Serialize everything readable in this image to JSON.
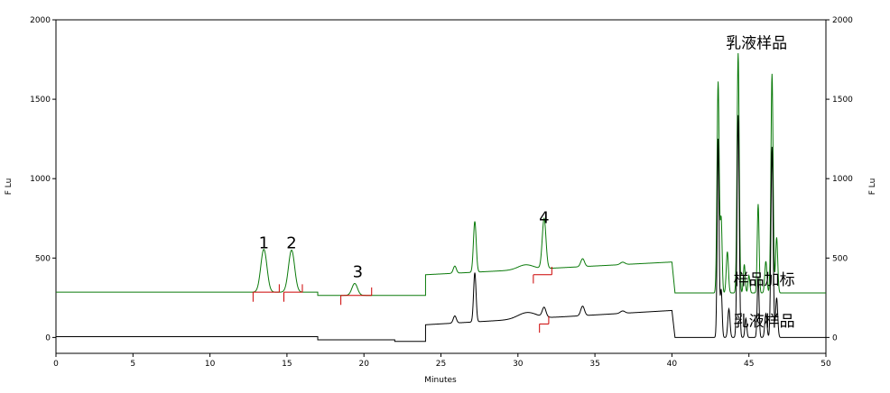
{
  "chart_data": {
    "type": "line",
    "xlabel": "Minutes",
    "ylabel_left": "F Lu",
    "ylabel_right": "F Lu",
    "xlim": [
      0,
      50
    ],
    "ylim": [
      -100,
      2000
    ],
    "x_ticks": [
      0,
      5,
      10,
      15,
      20,
      25,
      30,
      35,
      40,
      45,
      50
    ],
    "y_ticks": [
      0,
      500,
      1000,
      1500,
      2000
    ],
    "grid": false,
    "colors": {
      "spiked": "#0a7a0a",
      "sample": "#000000",
      "marker": "#cc0000"
    },
    "peak_labels": [
      {
        "text": "1",
        "x": 13.5,
        "y": 560
      },
      {
        "text": "2",
        "x": 15.3,
        "y": 560
      },
      {
        "text": "3",
        "x": 19.6,
        "y": 380
      },
      {
        "text": "4",
        "x": 31.7,
        "y": 720
      }
    ],
    "trace_labels": [
      {
        "text": "乳液样品",
        "x": 43.5,
        "y": 1820
      },
      {
        "text": "样品加标",
        "x": 44.0,
        "y": 330
      },
      {
        "text": "乳液样品",
        "x": 44.0,
        "y": 70
      }
    ],
    "series": [
      {
        "key": "spiked",
        "baseline": [
          [
            0,
            285
          ],
          [
            17.0,
            285
          ],
          [
            17.0,
            265
          ],
          [
            24.0,
            265
          ],
          [
            24.0,
            395
          ],
          [
            40.0,
            475
          ],
          [
            40.2,
            280
          ],
          [
            42.7,
            280
          ],
          [
            50,
            280
          ]
        ],
        "peaks": [
          [
            13.5,
            270,
            0.2
          ],
          [
            15.3,
            265,
            0.2
          ],
          [
            19.4,
            75,
            0.18
          ],
          [
            25.9,
            45,
            0.1
          ],
          [
            27.2,
            320,
            0.09
          ],
          [
            30.5,
            30,
            0.5
          ],
          [
            31.7,
            315,
            0.12
          ],
          [
            34.2,
            50,
            0.12
          ],
          [
            36.8,
            15,
            0.15
          ],
          [
            43.0,
            1330,
            0.07
          ],
          [
            43.2,
            460,
            0.06
          ],
          [
            43.6,
            260,
            0.07
          ],
          [
            44.3,
            1510,
            0.07
          ],
          [
            44.7,
            180,
            0.06
          ],
          [
            45.0,
            110,
            0.06
          ],
          [
            45.6,
            560,
            0.06
          ],
          [
            46.1,
            200,
            0.07
          ],
          [
            46.5,
            1380,
            0.07
          ],
          [
            46.8,
            350,
            0.07
          ]
        ]
      },
      {
        "key": "sample",
        "baseline": [
          [
            0,
            5
          ],
          [
            17.0,
            5
          ],
          [
            17.0,
            -15
          ],
          [
            22.0,
            -15
          ],
          [
            22.0,
            -25
          ],
          [
            24.0,
            -25
          ],
          [
            24.0,
            80
          ],
          [
            40.0,
            170
          ],
          [
            40.2,
            0
          ],
          [
            42.7,
            0
          ],
          [
            50,
            0
          ]
        ],
        "peaks": [
          [
            25.9,
            45,
            0.1
          ],
          [
            27.2,
            310,
            0.08
          ],
          [
            30.6,
            40,
            0.6
          ],
          [
            31.7,
            60,
            0.12
          ],
          [
            34.2,
            60,
            0.12
          ],
          [
            36.8,
            15,
            0.15
          ],
          [
            43.0,
            1250,
            0.06
          ],
          [
            43.2,
            300,
            0.06
          ],
          [
            43.7,
            180,
            0.07
          ],
          [
            44.3,
            1400,
            0.07
          ],
          [
            44.8,
            120,
            0.06
          ],
          [
            45.6,
            380,
            0.06
          ],
          [
            46.1,
            150,
            0.07
          ],
          [
            46.5,
            1200,
            0.07
          ],
          [
            46.8,
            250,
            0.07
          ]
        ]
      }
    ],
    "integration_marks": [
      {
        "type": "baseline",
        "x1": 12.8,
        "x2": 14.5,
        "y": 285
      },
      {
        "type": "baseline",
        "x1": 14.8,
        "x2": 16.0,
        "y": 285
      },
      {
        "type": "baseline",
        "x1": 18.5,
        "x2": 20.5,
        "y": 265
      },
      {
        "type": "baseline",
        "x1": 31.0,
        "x2": 32.2,
        "y": 395
      },
      {
        "type": "baseline",
        "x1": 31.4,
        "x2": 32.0,
        "y": 85
      },
      {
        "type": "tick",
        "x": 12.8,
        "y1": 285,
        "y2": 225
      },
      {
        "type": "tick",
        "x": 14.5,
        "y1": 285,
        "y2": 335
      },
      {
        "type": "tick",
        "x": 14.8,
        "y1": 285,
        "y2": 225
      },
      {
        "type": "tick",
        "x": 16.0,
        "y1": 285,
        "y2": 335
      },
      {
        "type": "tick",
        "x": 18.5,
        "y1": 265,
        "y2": 205
      },
      {
        "type": "tick",
        "x": 20.5,
        "y1": 265,
        "y2": 315
      },
      {
        "type": "tick",
        "x": 31.0,
        "y1": 395,
        "y2": 340
      },
      {
        "type": "tick",
        "x": 32.2,
        "y1": 395,
        "y2": 445
      },
      {
        "type": "tick",
        "x": 31.4,
        "y1": 85,
        "y2": 30
      },
      {
        "type": "tick",
        "x": 32.0,
        "y1": 85,
        "y2": 135
      }
    ]
  }
}
